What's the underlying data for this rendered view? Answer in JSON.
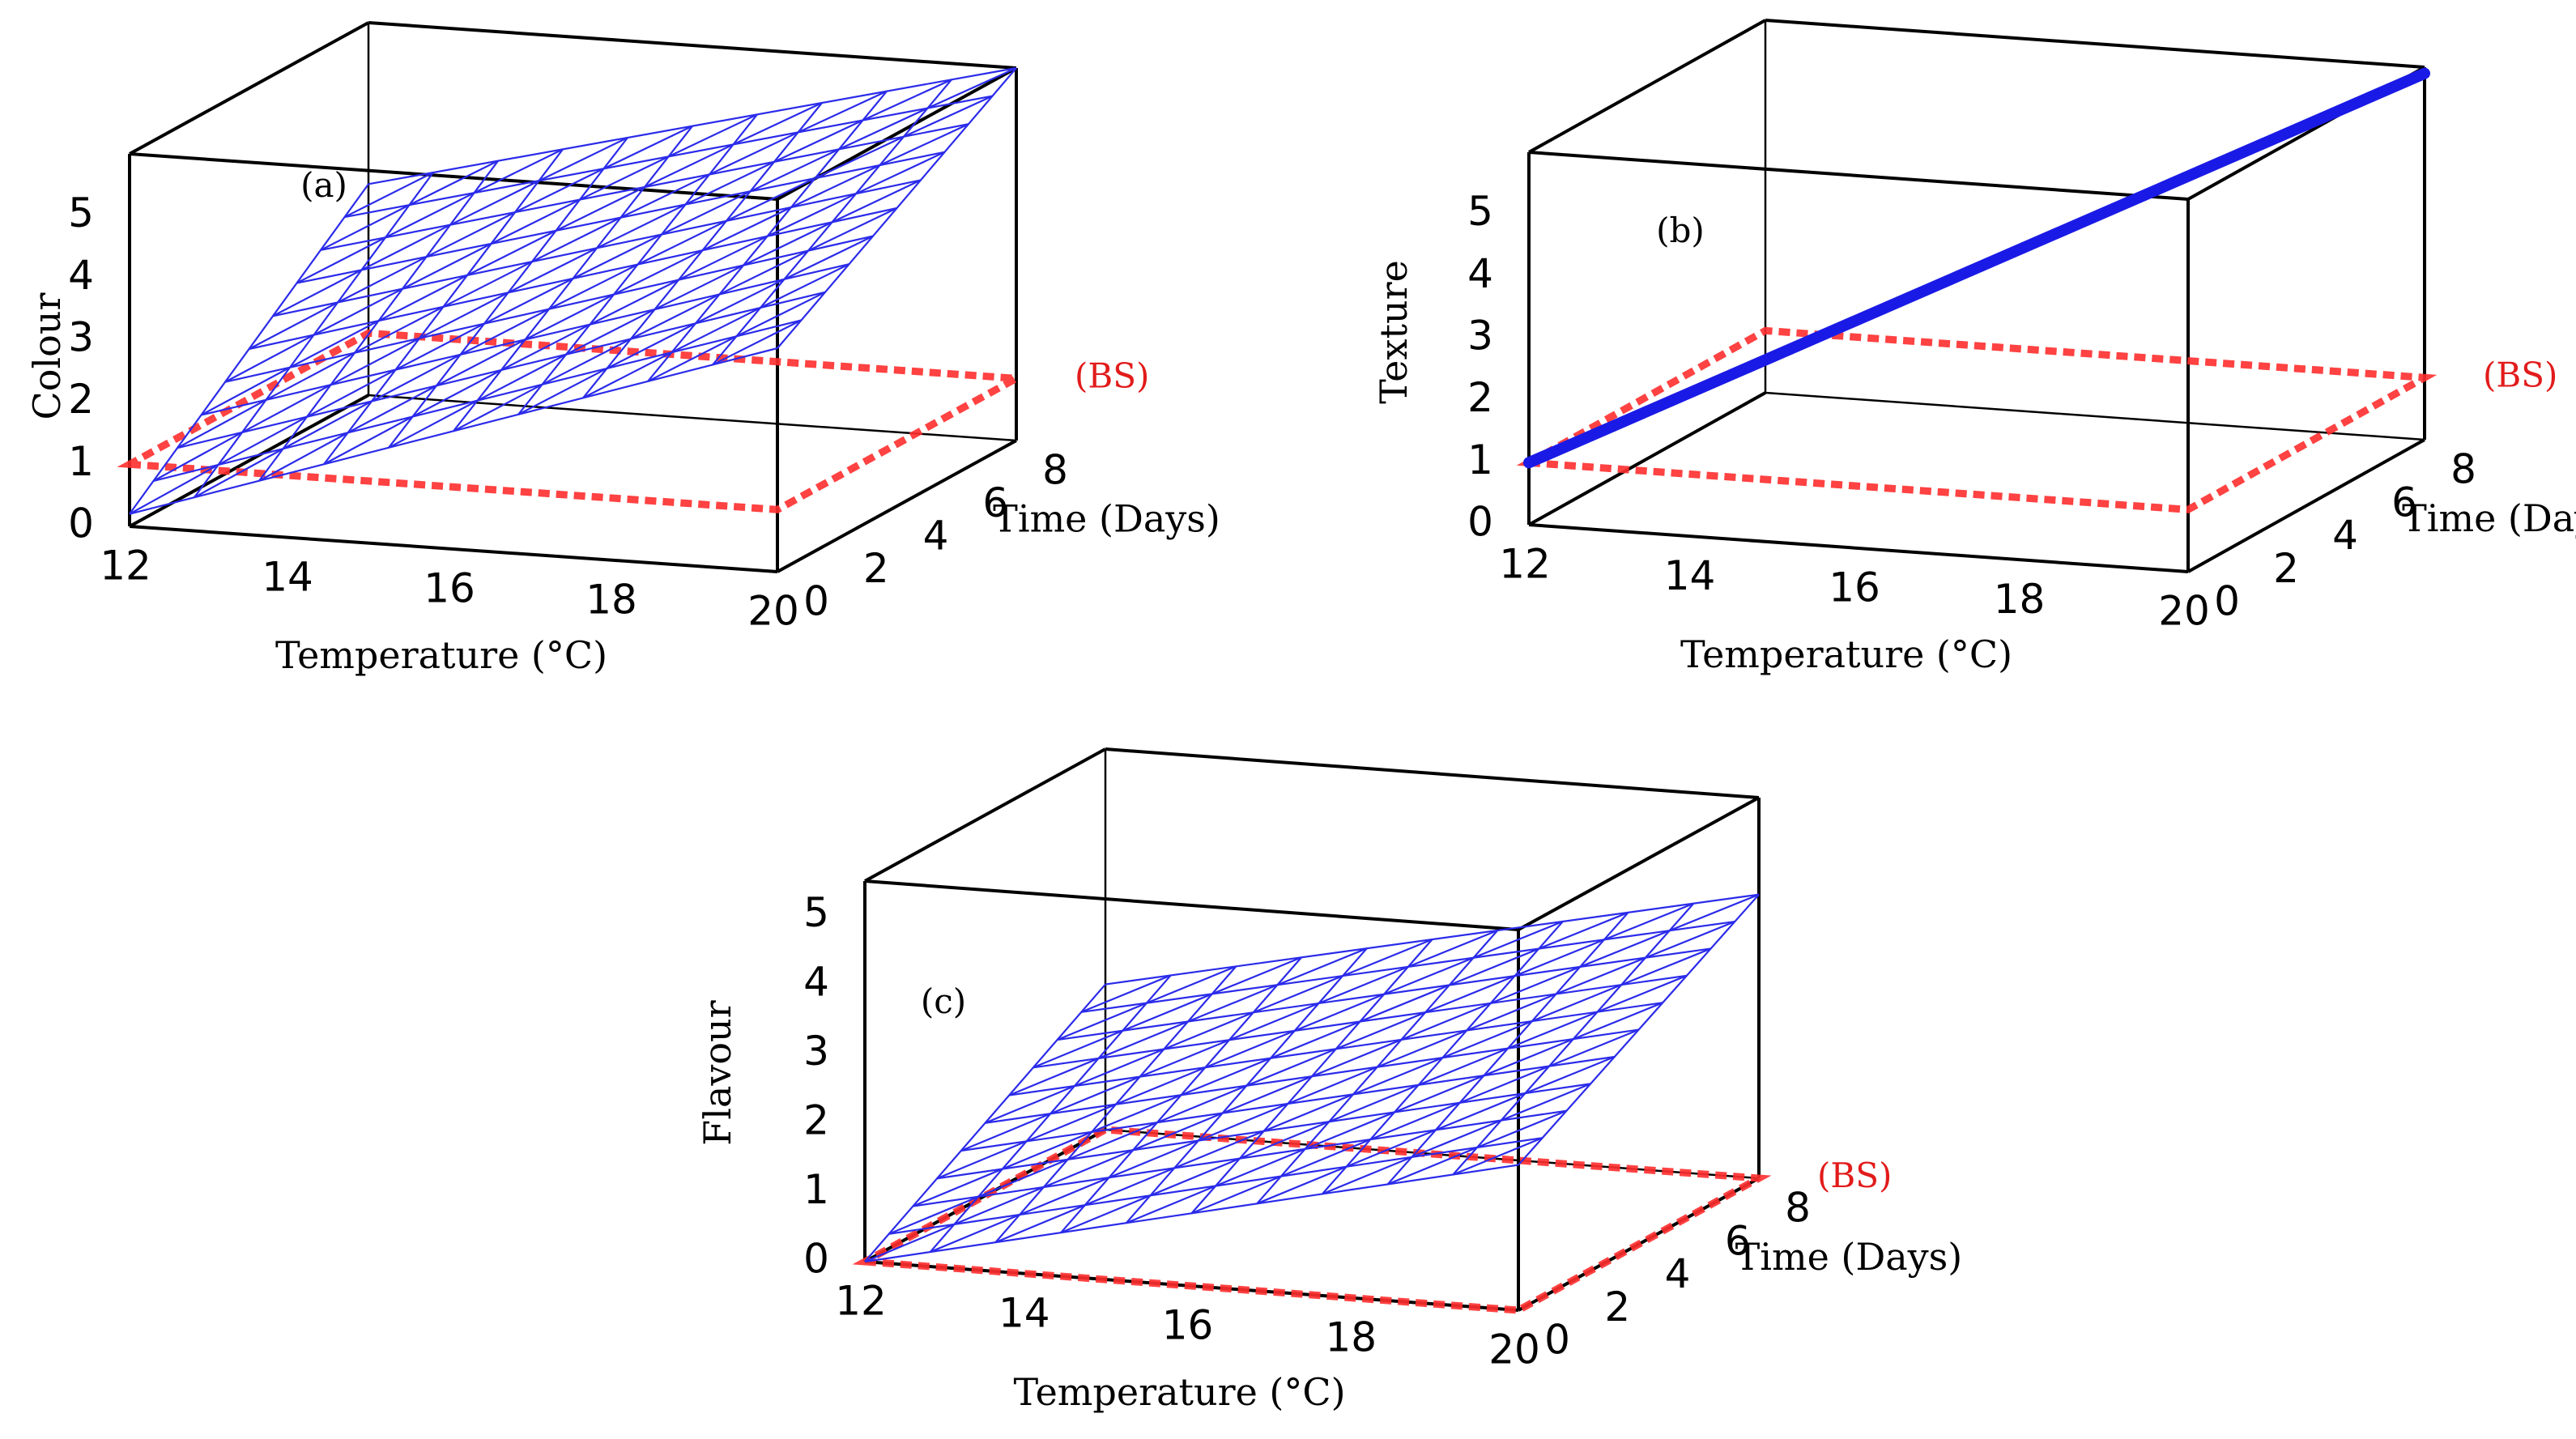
{
  "chart_data": [
    {
      "id": "a",
      "type": "surface3d",
      "panel_label": "(a)",
      "zlabel": "Colour",
      "xlabel": "Temperature (°C)",
      "ylabel": "Time (Days)",
      "x_ticks": [
        "12",
        "14",
        "16",
        "18",
        "20"
      ],
      "y_ticks": [
        "0",
        "2",
        "4",
        "6",
        "8"
      ],
      "z_ticks": [
        "0",
        "1",
        "2",
        "3",
        "4",
        "5"
      ],
      "xlim": [
        12,
        20
      ],
      "ylim": [
        0,
        8
      ],
      "zlim": [
        0,
        6
      ],
      "surface": {
        "corners": {
          "x12_t0": 0.2,
          "x20_t0": 3.6,
          "x12_t8": 3.4,
          "x20_t8": 6.0
        },
        "grid": 10
      },
      "bs_plane": {
        "level": 1.0,
        "label": "(BS)"
      }
    },
    {
      "id": "b",
      "type": "surface3d",
      "panel_label": "(b)",
      "zlabel": "Texture",
      "xlabel": "Temperature (°C)",
      "ylabel": "Time (Days)",
      "x_ticks": [
        "12",
        "14",
        "16",
        "18",
        "20"
      ],
      "y_ticks": [
        "0",
        "2",
        "4",
        "6",
        "8"
      ],
      "z_ticks": [
        "0",
        "1",
        "2",
        "3",
        "4",
        "5"
      ],
      "xlim": [
        12,
        20
      ],
      "ylim": [
        0,
        8
      ],
      "zlim": [
        0,
        6
      ],
      "line": {
        "start": 1.0,
        "end": 5.9
      },
      "bs_plane": {
        "level": 1.0,
        "label": "(BS)"
      }
    },
    {
      "id": "c",
      "type": "surface3d",
      "panel_label": "(c)",
      "zlabel": "Flavour",
      "xlabel": "Temperature (°C)",
      "ylabel": "Time (Days)",
      "x_ticks": [
        "12",
        "14",
        "16",
        "18",
        "20"
      ],
      "y_ticks": [
        "0",
        "2",
        "4",
        "6",
        "8"
      ],
      "z_ticks": [
        "0",
        "1",
        "2",
        "3",
        "4",
        "5"
      ],
      "xlim": [
        12,
        20
      ],
      "ylim": [
        0,
        8
      ],
      "zlim": [
        0,
        5.5
      ],
      "surface": {
        "corners": {
          "x12_t0": 0.0,
          "x20_t0": 2.1,
          "x12_t8": 2.1,
          "x20_t8": 4.1
        },
        "grid": 10
      },
      "bs_plane": {
        "level": 0.0,
        "label": "(BS)"
      }
    }
  ]
}
